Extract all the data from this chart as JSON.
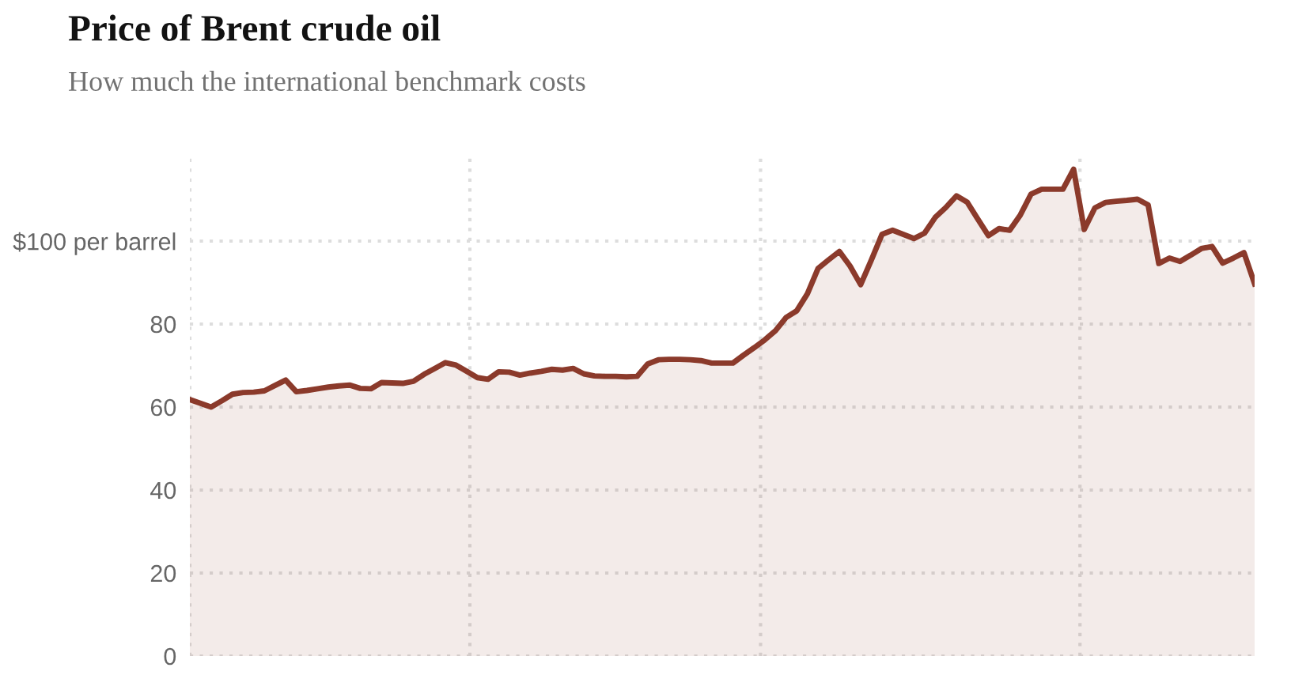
{
  "chart_data": {
    "type": "area",
    "title": "Price of Brent crude oil",
    "subtitle": "How much the international benchmark costs",
    "categories": [
      null,
      null,
      null,
      null,
      null,
      null,
      null,
      null,
      null,
      null,
      null,
      null,
      null,
      null,
      null,
      null,
      null,
      null,
      null,
      null,
      null,
      null,
      null,
      null,
      null,
      null,
      null,
      null,
      null,
      null,
      null,
      null,
      null,
      null,
      null,
      null,
      null,
      null,
      null,
      null,
      null,
      null,
      null,
      null,
      null,
      null,
      null,
      null,
      null,
      null,
      null,
      null,
      null,
      null,
      null,
      null,
      null,
      null,
      null,
      null,
      null,
      null,
      null,
      null,
      null,
      null,
      null,
      null,
      null,
      null,
      null,
      null,
      null,
      null,
      null,
      null,
      null,
      null,
      null,
      null,
      null,
      null,
      null,
      null,
      null,
      null,
      null,
      null,
      null,
      null,
      null,
      null,
      null,
      null,
      null,
      null,
      null,
      null,
      null,
      null,
      null
    ],
    "values": [
      61.8,
      60.9,
      60.0,
      61.5,
      63.1,
      63.5,
      63.6,
      63.9,
      65.2,
      66.5,
      63.7,
      64.0,
      64.4,
      64.8,
      65.1,
      65.3,
      64.5,
      64.4,
      65.9,
      65.8,
      65.7,
      66.2,
      67.9,
      69.3,
      70.7,
      70.1,
      68.6,
      67.1,
      66.7,
      68.5,
      68.4,
      67.7,
      68.2,
      68.6,
      69.1,
      68.9,
      69.3,
      68.0,
      67.5,
      67.4,
      67.4,
      67.3,
      67.4,
      70.4,
      71.4,
      71.5,
      71.5,
      71.4,
      71.2,
      70.6,
      70.6,
      70.6,
      72.5,
      74.3,
      76.2,
      78.4,
      81.6,
      83.2,
      87.3,
      93.4,
      95.5,
      97.5,
      94.0,
      89.5,
      95.4,
      101.6,
      102.6,
      101.6,
      100.6,
      101.9,
      105.7,
      108.1,
      110.9,
      109.4,
      105.3,
      101.3,
      103.0,
      102.6,
      106.3,
      111.3,
      112.5,
      112.5,
      112.5,
      117.3,
      102.8,
      108.0,
      109.3,
      109.6,
      109.8,
      110.1,
      108.7,
      94.6,
      95.9,
      95.1,
      96.6,
      98.2,
      98.7,
      94.7,
      95.9,
      97.2,
      89.7
    ],
    "color": "#8b3a2b",
    "ylim": [
      0,
      120
    ],
    "yticks": [
      0,
      20,
      40,
      60,
      80,
      {
        "value": 100,
        "label": "$100 per barrel"
      }
    ],
    "grid": "y"
  }
}
